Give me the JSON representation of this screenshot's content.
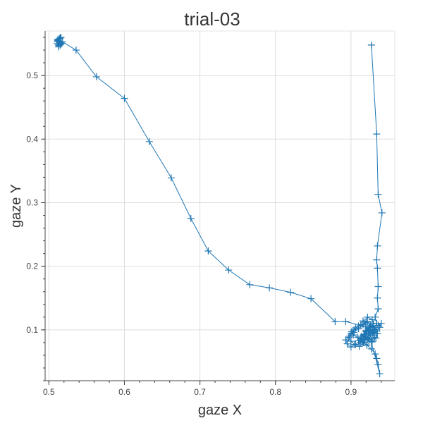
{
  "chart_data": {
    "type": "line",
    "title": "trial-03",
    "xlabel": "gaze X",
    "ylabel": "gaze Y",
    "xlim": [
      0.495,
      0.958
    ],
    "ylim": [
      0.02,
      0.57
    ],
    "xticks": [
      0.5,
      0.6,
      0.7,
      0.8,
      0.9
    ],
    "xtick_labels": [
      "0.5",
      "0.6",
      "0.7",
      "0.8",
      "0.9"
    ],
    "yticks": [
      0.1,
      0.2,
      0.3,
      0.4,
      0.5
    ],
    "ytick_labels": [
      "0.1",
      "0.2",
      "0.3",
      "0.4",
      "0.5"
    ],
    "grid": true,
    "marker": "+",
    "line_color": "#1f77b4",
    "series": [
      {
        "x": [
          0.927,
          0.934,
          0.936,
          0.941,
          0.935,
          0.934,
          0.935,
          0.936,
          0.935,
          0.936,
          0.932,
          0.934,
          0.93,
          0.925,
          0.918,
          0.913,
          0.91,
          0.914,
          0.92,
          0.926,
          0.93,
          0.928,
          0.922,
          0.916,
          0.91,
          0.904,
          0.9,
          0.897,
          0.9,
          0.905,
          0.911,
          0.917,
          0.923,
          0.929,
          0.934,
          0.938,
          0.94,
          0.936,
          0.931,
          0.925,
          0.919,
          0.912,
          0.906,
          0.9,
          0.895,
          0.893,
          0.898,
          0.904,
          0.91,
          0.916,
          0.922,
          0.928,
          0.932,
          0.935,
          0.933,
          0.928,
          0.922,
          0.918,
          0.92,
          0.924,
          0.929,
          0.931,
          0.927,
          0.921,
          0.916,
          0.913,
          0.917,
          0.923,
          0.938,
          0.936,
          0.934,
          0.932,
          0.927,
          0.921,
          0.915,
          0.909,
          0.903,
          0.901,
          0.906,
          0.913,
          0.92,
          0.926,
          0.93,
          0.926,
          0.92,
          0.917,
          0.921,
          0.925,
          0.928,
          0.924,
          0.919,
          0.893,
          0.879,
          0.847,
          0.82,
          0.792,
          0.766,
          0.738,
          0.711,
          0.688,
          0.662,
          0.633,
          0.6,
          0.563,
          0.536,
          0.518,
          0.514,
          0.511,
          0.513,
          0.516,
          0.512,
          0.515,
          0.514,
          0.512,
          0.516,
          0.513,
          0.511,
          0.515,
          0.513,
          0.514,
          0.512,
          0.516
        ],
        "y": [
          0.548,
          0.408,
          0.313,
          0.284,
          0.232,
          0.21,
          0.197,
          0.168,
          0.15,
          0.133,
          0.12,
          0.11,
          0.1,
          0.092,
          0.085,
          0.08,
          0.083,
          0.09,
          0.097,
          0.104,
          0.11,
          0.116,
          0.12,
          0.114,
          0.106,
          0.1,
          0.094,
          0.088,
          0.082,
          0.077,
          0.074,
          0.08,
          0.086,
          0.092,
          0.098,
          0.104,
          0.11,
          0.107,
          0.101,
          0.095,
          0.089,
          0.083,
          0.077,
          0.073,
          0.078,
          0.084,
          0.09,
          0.096,
          0.102,
          0.108,
          0.113,
          0.106,
          0.1,
          0.094,
          0.087,
          0.081,
          0.085,
          0.092,
          0.099,
          0.105,
          0.095,
          0.088,
          0.082,
          0.076,
          0.08,
          0.086,
          0.092,
          0.098,
          0.031,
          0.045,
          0.055,
          0.062,
          0.07,
          0.076,
          0.082,
          0.088,
          0.092,
          0.097,
          0.103,
          0.108,
          0.112,
          0.107,
          0.1,
          0.094,
          0.088,
          0.093,
          0.099,
          0.104,
          0.096,
          0.1,
          0.105,
          0.113,
          0.113,
          0.149,
          0.159,
          0.166,
          0.171,
          0.194,
          0.224,
          0.275,
          0.339,
          0.396,
          0.464,
          0.498,
          0.54,
          0.553,
          0.558,
          0.55,
          0.545,
          0.56,
          0.555,
          0.548,
          0.552,
          0.557,
          0.551,
          0.547,
          0.554,
          0.559,
          0.549,
          0.553,
          0.556,
          0.55
        ]
      }
    ]
  }
}
